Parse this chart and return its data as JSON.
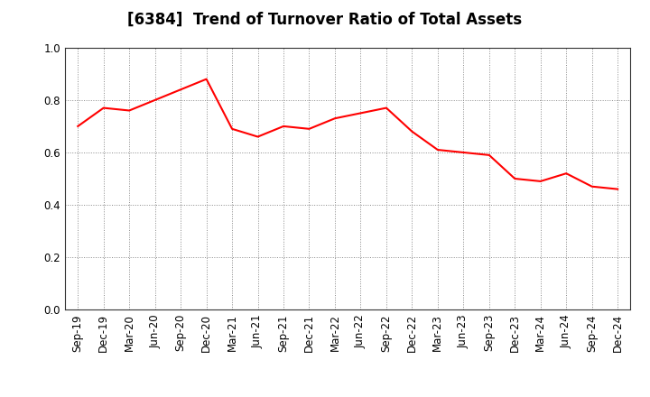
{
  "title": "[6384]  Trend of Turnover Ratio of Total Assets",
  "labels": [
    "Sep-19",
    "Dec-19",
    "Mar-20",
    "Jun-20",
    "Sep-20",
    "Dec-20",
    "Mar-21",
    "Jun-21",
    "Sep-21",
    "Dec-21",
    "Mar-22",
    "Jun-22",
    "Sep-22",
    "Dec-22",
    "Mar-23",
    "Jun-23",
    "Sep-23",
    "Dec-23",
    "Mar-24",
    "Jun-24",
    "Sep-24",
    "Dec-24"
  ],
  "values": [
    0.7,
    0.77,
    0.76,
    0.8,
    0.84,
    0.88,
    0.69,
    0.66,
    0.7,
    0.69,
    0.73,
    0.75,
    0.77,
    0.68,
    0.61,
    0.6,
    0.59,
    0.5,
    0.49,
    0.52,
    0.47,
    0.46
  ],
  "line_color": "#FF0000",
  "line_width": 1.5,
  "ylim": [
    0.0,
    1.0
  ],
  "yticks": [
    0.0,
    0.2,
    0.4,
    0.6,
    0.8,
    1.0
  ],
  "background_color": "#ffffff",
  "grid_color": "#888888",
  "title_fontsize": 12,
  "tick_fontsize": 8.5
}
